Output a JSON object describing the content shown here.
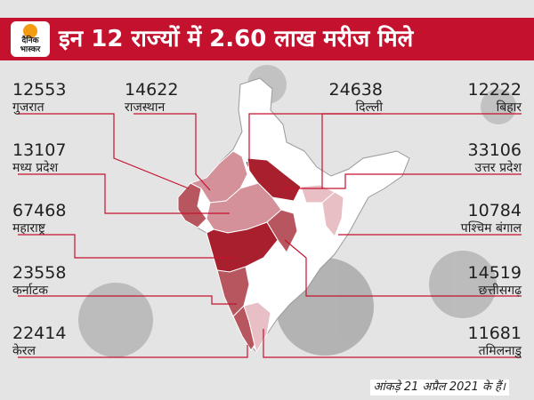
{
  "title": "इन 12 राज्यों में 2.60 लाख मरीज मिले",
  "logo": {
    "line1": "दैनिक",
    "line2": "भास्कर"
  },
  "footer": "आंकड़े 21 अप्रैल 2021 के हैं।",
  "colors": {
    "header": "#c4122e",
    "leader": "#c4122e",
    "dark": "#a8202e",
    "medium": "#b8565f",
    "light": "#d4919a",
    "pale": "#e8bfc4",
    "unlisted": "#ffffff",
    "border": "#9a9a9a"
  },
  "states": [
    {
      "id": "gujarat",
      "name": "गुजरात",
      "cases": 12553,
      "shade": "medium"
    },
    {
      "id": "rajasthan",
      "name": "राजस्थान",
      "cases": 14622,
      "shade": "light"
    },
    {
      "id": "delhi",
      "name": "दिल्ली",
      "cases": 24638,
      "shade": "dark"
    },
    {
      "id": "bihar",
      "name": "बिहार",
      "cases": 12222,
      "shade": "pale"
    },
    {
      "id": "mp",
      "name": "मध्य प्रदेश",
      "cases": 13107,
      "shade": "light"
    },
    {
      "id": "up",
      "name": "उत्तर प्रदेश",
      "cases": 33106,
      "shade": "dark"
    },
    {
      "id": "maharashtra",
      "name": "महाराष्ट्र",
      "cases": 67468,
      "shade": "dark"
    },
    {
      "id": "wb",
      "name": "पश्चिम बंगाल",
      "cases": 10784,
      "shade": "pale"
    },
    {
      "id": "karnataka",
      "name": "कर्नाटक",
      "cases": 23558,
      "shade": "medium"
    },
    {
      "id": "chhattisgarh",
      "name": "छत्तीसगढ़",
      "cases": 14519,
      "shade": "medium"
    },
    {
      "id": "kerala",
      "name": "केरल",
      "cases": 22414,
      "shade": "medium"
    },
    {
      "id": "tamilnadu",
      "name": "तमिलनाडु",
      "cases": 11681,
      "shade": "pale"
    }
  ]
}
